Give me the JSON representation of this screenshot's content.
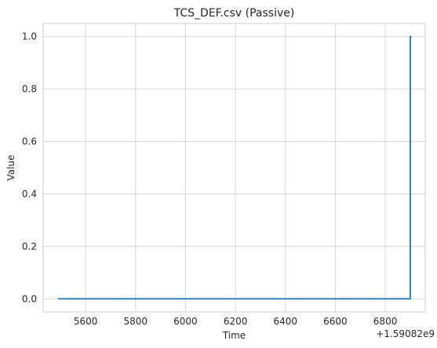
{
  "chart_data": {
    "type": "line",
    "title": "TCS_DEF.csv (Passive)",
    "xlabel": "Time",
    "ylabel": "Value",
    "offset_text": "+1.59082e9",
    "xlim": [
      5430,
      6960
    ],
    "ylim": [
      -0.05,
      1.05
    ],
    "x_ticks": [
      5600,
      5800,
      6000,
      6200,
      6400,
      6600,
      6800
    ],
    "x_tick_labels": [
      "5600",
      "5800",
      "6000",
      "6200",
      "6400",
      "6600",
      "6800"
    ],
    "y_ticks": [
      0.0,
      0.2,
      0.4,
      0.6,
      0.8,
      1.0
    ],
    "y_tick_labels": [
      "0.0",
      "0.2",
      "0.4",
      "0.6",
      "0.8",
      "1.0"
    ],
    "grid": true,
    "series": [
      {
        "color": "#1f77b4",
        "x": [
          5490,
          6900,
          6900,
          6905
        ],
        "y": [
          0,
          0,
          1,
          1
        ]
      }
    ]
  }
}
